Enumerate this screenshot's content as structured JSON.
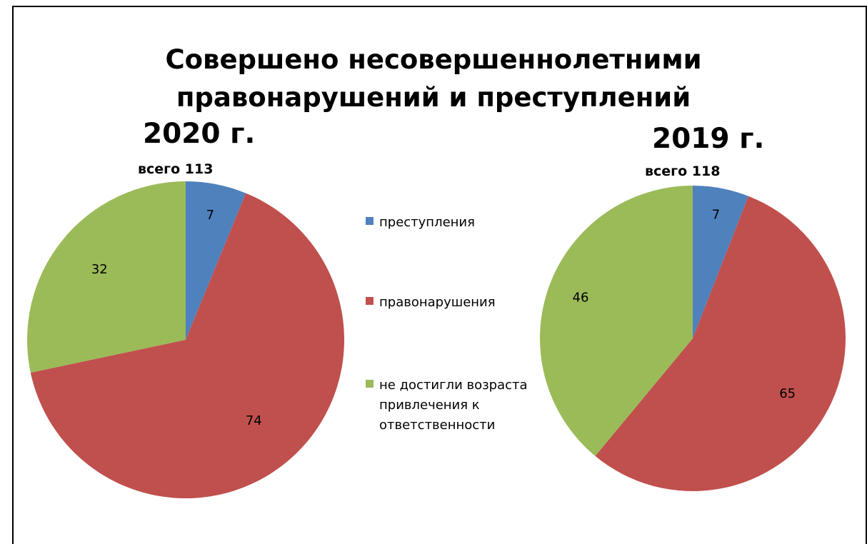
{
  "chart_data": {
    "type": "pie",
    "title": "Совершено несовершеннолетними правонарушений и преступлений",
    "title_lines": [
      "Совершено несовершеннолетними",
      "правонарушений и преступлений"
    ],
    "legend": [
      "преступления",
      "правонарушения",
      "не достигли возраста привлечения к ответственности"
    ],
    "legend_position": "center",
    "colors": [
      "#4F81BD",
      "#C0504D",
      "#9BBB59"
    ],
    "charts": [
      {
        "year_label": "2020 г.",
        "total_label": "всего 113",
        "values": [
          7,
          74,
          32
        ]
      },
      {
        "year_label": "2019 г.",
        "total_label": "всего 118",
        "values": [
          7,
          65,
          46
        ]
      }
    ]
  }
}
